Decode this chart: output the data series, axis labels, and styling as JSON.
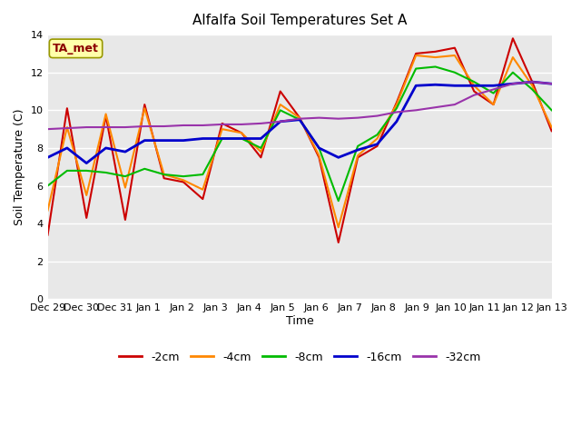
{
  "title": "Alfalfa Soil Temperatures Set A",
  "xlabel": "Time",
  "ylabel": "Soil Temperature (C)",
  "ylim": [
    0,
    14
  ],
  "yticks": [
    0,
    2,
    4,
    6,
    8,
    10,
    12,
    14
  ],
  "fig_bg": "#ffffff",
  "plot_bg": "#e8e8e8",
  "annotation_text": "TA_met",
  "annotation_color": "#8b0000",
  "annotation_bg": "#ffffaa",
  "annotation_edge": "#999900",
  "series_order": [
    "-2cm",
    "-4cm",
    "-8cm",
    "-16cm",
    "-32cm"
  ],
  "series_colors": {
    "-2cm": "#cc0000",
    "-4cm": "#ff8800",
    "-8cm": "#00bb00",
    "-16cm": "#0000cc",
    "-32cm": "#9933aa"
  },
  "series_lw": {
    "-2cm": 1.5,
    "-4cm": 1.5,
    "-8cm": 1.5,
    "-16cm": 2.0,
    "-32cm": 1.5
  },
  "x_labels": [
    "Dec 29",
    "Dec 30",
    "Dec 31",
    "Jan 1",
    "Jan 2",
    "Jan 3",
    "Jan 4",
    "Jan 5",
    "Jan 6",
    "Jan 7",
    "Jan 8",
    "Jan 9",
    "Jan 10",
    "Jan 11",
    "Jan 12",
    "Jan 13"
  ],
  "data": {
    "-2cm": [
      3.4,
      10.1,
      4.3,
      9.7,
      4.2,
      10.3,
      6.4,
      6.2,
      5.3,
      9.3,
      8.8,
      7.5,
      11.0,
      9.6,
      7.5,
      3.0,
      7.5,
      8.1,
      10.4,
      13.0,
      13.1,
      13.3,
      11.0,
      10.3,
      13.8,
      11.5,
      8.9
    ],
    "-4cm": [
      4.7,
      9.1,
      5.5,
      9.8,
      5.9,
      10.1,
      6.6,
      6.3,
      5.8,
      9.0,
      8.8,
      7.8,
      10.3,
      9.6,
      7.6,
      3.8,
      7.6,
      8.5,
      10.3,
      12.9,
      12.8,
      12.9,
      11.3,
      10.3,
      12.8,
      11.3,
      9.1
    ],
    "-8cm": [
      6.0,
      6.8,
      6.8,
      6.7,
      6.5,
      6.9,
      6.6,
      6.5,
      6.6,
      8.5,
      8.5,
      8.0,
      10.0,
      9.5,
      8.0,
      5.2,
      8.1,
      8.7,
      10.1,
      12.2,
      12.3,
      12.0,
      11.5,
      10.9,
      12.0,
      11.1,
      10.0
    ],
    "-16cm": [
      7.5,
      8.0,
      7.2,
      8.0,
      7.8,
      8.4,
      8.4,
      8.4,
      8.5,
      8.5,
      8.5,
      8.5,
      9.4,
      9.5,
      8.0,
      7.5,
      7.9,
      8.2,
      9.4,
      11.3,
      11.35,
      11.3,
      11.3,
      11.3,
      11.4,
      11.5,
      11.4
    ],
    "-32cm": [
      9.0,
      9.05,
      9.1,
      9.1,
      9.1,
      9.15,
      9.15,
      9.2,
      9.2,
      9.25,
      9.25,
      9.3,
      9.4,
      9.55,
      9.6,
      9.55,
      9.6,
      9.7,
      9.9,
      10.0,
      10.15,
      10.3,
      10.8,
      11.1,
      11.4,
      11.5,
      11.4
    ]
  }
}
